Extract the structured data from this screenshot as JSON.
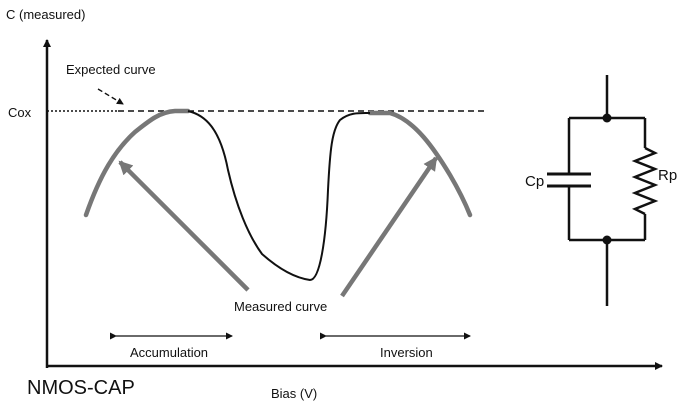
{
  "y_axis_label": "C (measured)",
  "x_axis_label": "Bias (V)",
  "cox_label": "Cox",
  "expected_curve_label": "Expected curve",
  "measured_curve_label": "Measured curve",
  "accumulation_label": "Accumulation",
  "inversion_label": "Inversion",
  "device_label": "NMOS-CAP",
  "circuit": {
    "capacitor_label": "Cp",
    "resistor_label": "Rp"
  },
  "colors": {
    "ink": "#111111",
    "measured_curve": "#777777"
  }
}
